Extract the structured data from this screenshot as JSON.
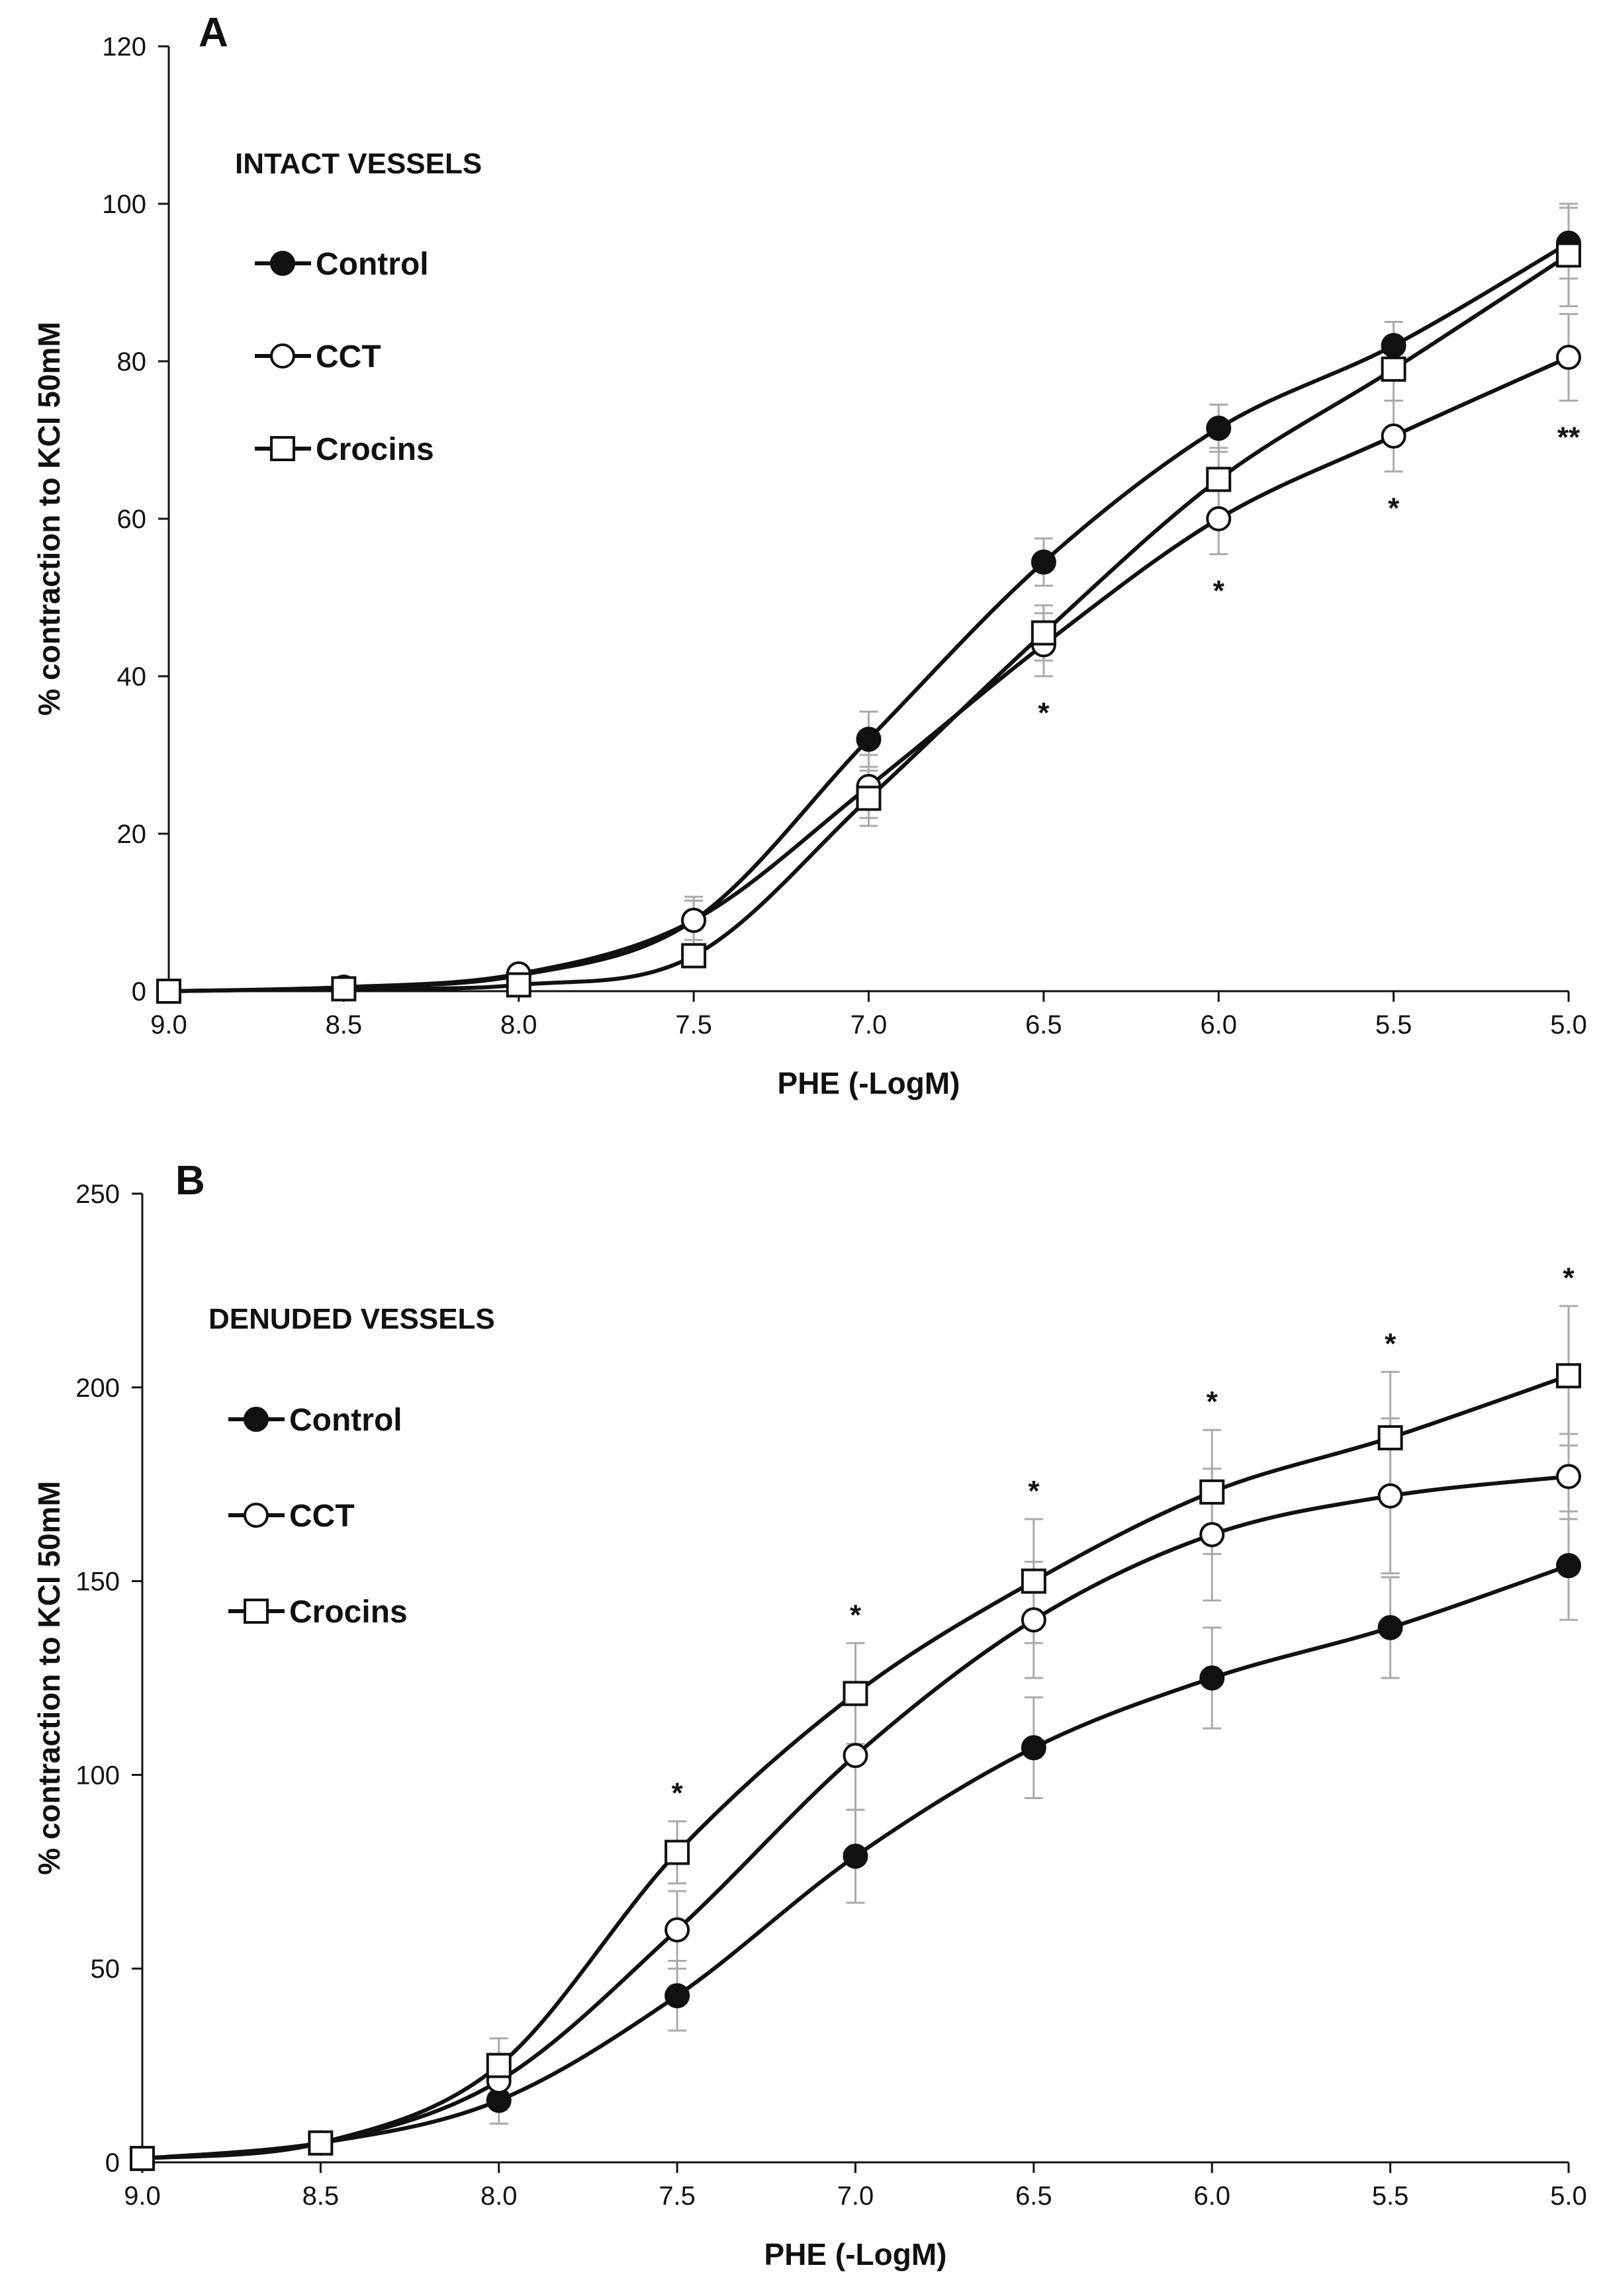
{
  "chart_data": [
    {
      "type": "line",
      "panel_label": "A",
      "legend_title": "INTACT VESSELS",
      "xlabel": "PHE (-LogM)",
      "ylabel": "% contraction to KCl 50mM",
      "xlim": [
        9.0,
        5.0
      ],
      "ylim": [
        0,
        120
      ],
      "x_ticks": [
        "9.0",
        "8.5",
        "8.0",
        "7.5",
        "7.0",
        "6.5",
        "6.0",
        "5.5",
        "5.0"
      ],
      "y_ticks": [
        "0",
        "20",
        "40",
        "60",
        "80",
        "100",
        "120"
      ],
      "x": [
        9.0,
        8.5,
        8.0,
        7.5,
        7.0,
        6.5,
        6.0,
        5.5,
        5.0
      ],
      "series": [
        {
          "name": "Control",
          "marker": "filled-circle",
          "values": [
            0,
            0.5,
            2,
            9,
            32,
            54.5,
            71.5,
            82,
            95
          ],
          "errors": [
            0,
            0.5,
            0.8,
            2.5,
            3.5,
            3,
            3,
            3,
            4.5
          ]
        },
        {
          "name": "CCT",
          "marker": "open-circle",
          "values": [
            0,
            0.5,
            2.2,
            9,
            26,
            44,
            60,
            70.5,
            80.5
          ],
          "errors": [
            0,
            0.5,
            0.8,
            3,
            4,
            4,
            4.5,
            4.5,
            5.5
          ]
        },
        {
          "name": "Crocins",
          "marker": "open-square",
          "values": [
            0,
            0.3,
            0.8,
            4.5,
            24.5,
            45.5,
            65,
            79,
            93.5
          ],
          "errors": [
            0,
            0.3,
            0.5,
            1,
            3.5,
            3.5,
            4,
            4,
            6.5
          ]
        }
      ],
      "significance": [
        {
          "x": 6.5,
          "label": "*"
        },
        {
          "x": 6.0,
          "label": "*"
        },
        {
          "x": 5.5,
          "label": "*"
        },
        {
          "x": 5.0,
          "label": "**"
        }
      ]
    },
    {
      "type": "line",
      "panel_label": "B",
      "legend_title": "DENUDED VESSELS",
      "xlabel": "PHE (-LogM)",
      "ylabel": "% contraction to KCl 50mM",
      "xlim": [
        9.0,
        5.0
      ],
      "ylim": [
        0,
        250
      ],
      "x_ticks": [
        "9.0",
        "8.5",
        "8.0",
        "7.5",
        "7.0",
        "6.5",
        "6.0",
        "5.5",
        "5.0"
      ],
      "y_ticks": [
        "0",
        "50",
        "100",
        "150",
        "200",
        "250"
      ],
      "x": [
        9.0,
        8.5,
        8.0,
        7.5,
        7.0,
        6.5,
        6.0,
        5.5,
        5.0
      ],
      "series": [
        {
          "name": "Control",
          "marker": "filled-circle",
          "values": [
            1,
            5,
            16,
            43,
            79,
            107,
            125,
            138,
            154
          ],
          "errors": [
            0.5,
            1,
            6,
            9,
            12,
            13,
            13,
            13,
            14
          ]
        },
        {
          "name": "CCT",
          "marker": "open-circle",
          "values": [
            1,
            5,
            21,
            60,
            105,
            140,
            162,
            172,
            177
          ],
          "errors": [
            0.5,
            1,
            7,
            10,
            14,
            15,
            17,
            20,
            11
          ]
        },
        {
          "name": "Crocins",
          "marker": "open-square",
          "values": [
            1,
            5,
            25,
            80,
            121,
            150,
            173,
            187,
            203
          ],
          "errors": [
            0.5,
            1,
            7,
            8,
            13,
            16,
            16,
            17,
            18
          ]
        }
      ],
      "significance": [
        {
          "x": 7.5,
          "label": "*"
        },
        {
          "x": 7.0,
          "label": "*"
        },
        {
          "x": 6.5,
          "label": "*"
        },
        {
          "x": 6.0,
          "label": "*"
        },
        {
          "x": 5.5,
          "label": "*"
        },
        {
          "x": 5.0,
          "label": "*"
        }
      ]
    }
  ],
  "colors": {
    "line": "#111111",
    "error_bar": "#aaaaaa",
    "marker_open_fill": "#ffffff"
  }
}
